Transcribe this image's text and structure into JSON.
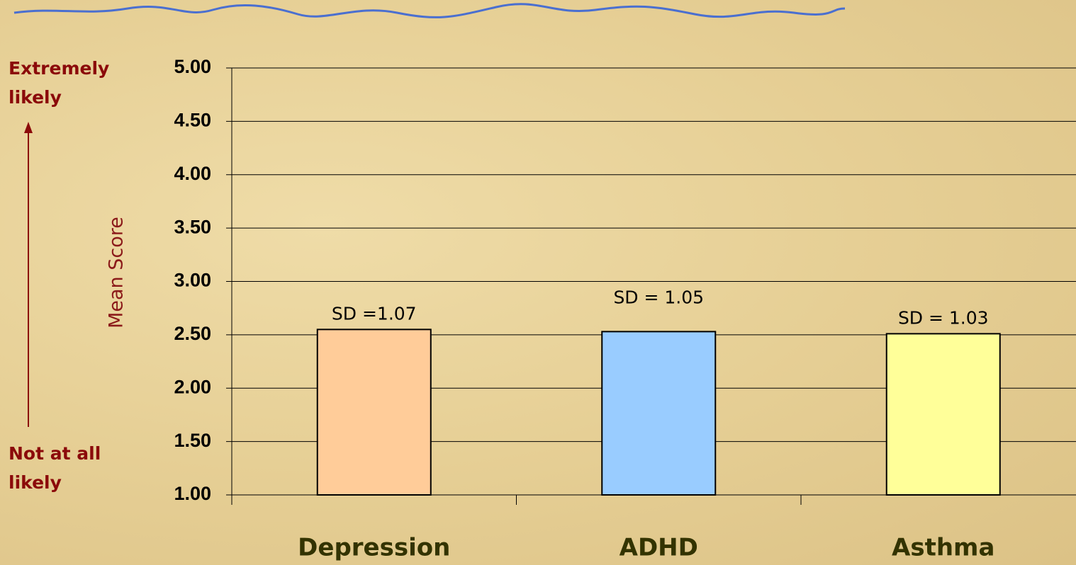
{
  "chart_data": {
    "type": "bar",
    "y_label": "Mean Score",
    "annotations": [
      "Extremely likely",
      "Not at all likely"
    ],
    "categories": [
      "Depression",
      "ADHD",
      "Asthma"
    ],
    "values": [
      2.55,
      2.53,
      2.51
    ],
    "colors": [
      "#ffcc99",
      "#99ccff",
      "#ffff99"
    ],
    "sd_labels": [
      "SD =1.07",
      "SD = 1.05",
      "SD = 1.03"
    ],
    "ylim": [
      1,
      5
    ],
    "yticks": [
      {
        "value": 1,
        "label": "1.00"
      },
      {
        "value": 1.5,
        "label": "1.50"
      },
      {
        "value": 2,
        "label": "2.00"
      },
      {
        "value": 2.5,
        "label": "2.50"
      },
      {
        "value": 3,
        "label": "3.00"
      },
      {
        "value": 3.5,
        "label": "3.50"
      },
      {
        "value": 4,
        "label": "4.00"
      },
      {
        "value": 4.5,
        "label": "4.50"
      },
      {
        "value": 5,
        "label": "5.00"
      }
    ],
    "grid": true
  }
}
